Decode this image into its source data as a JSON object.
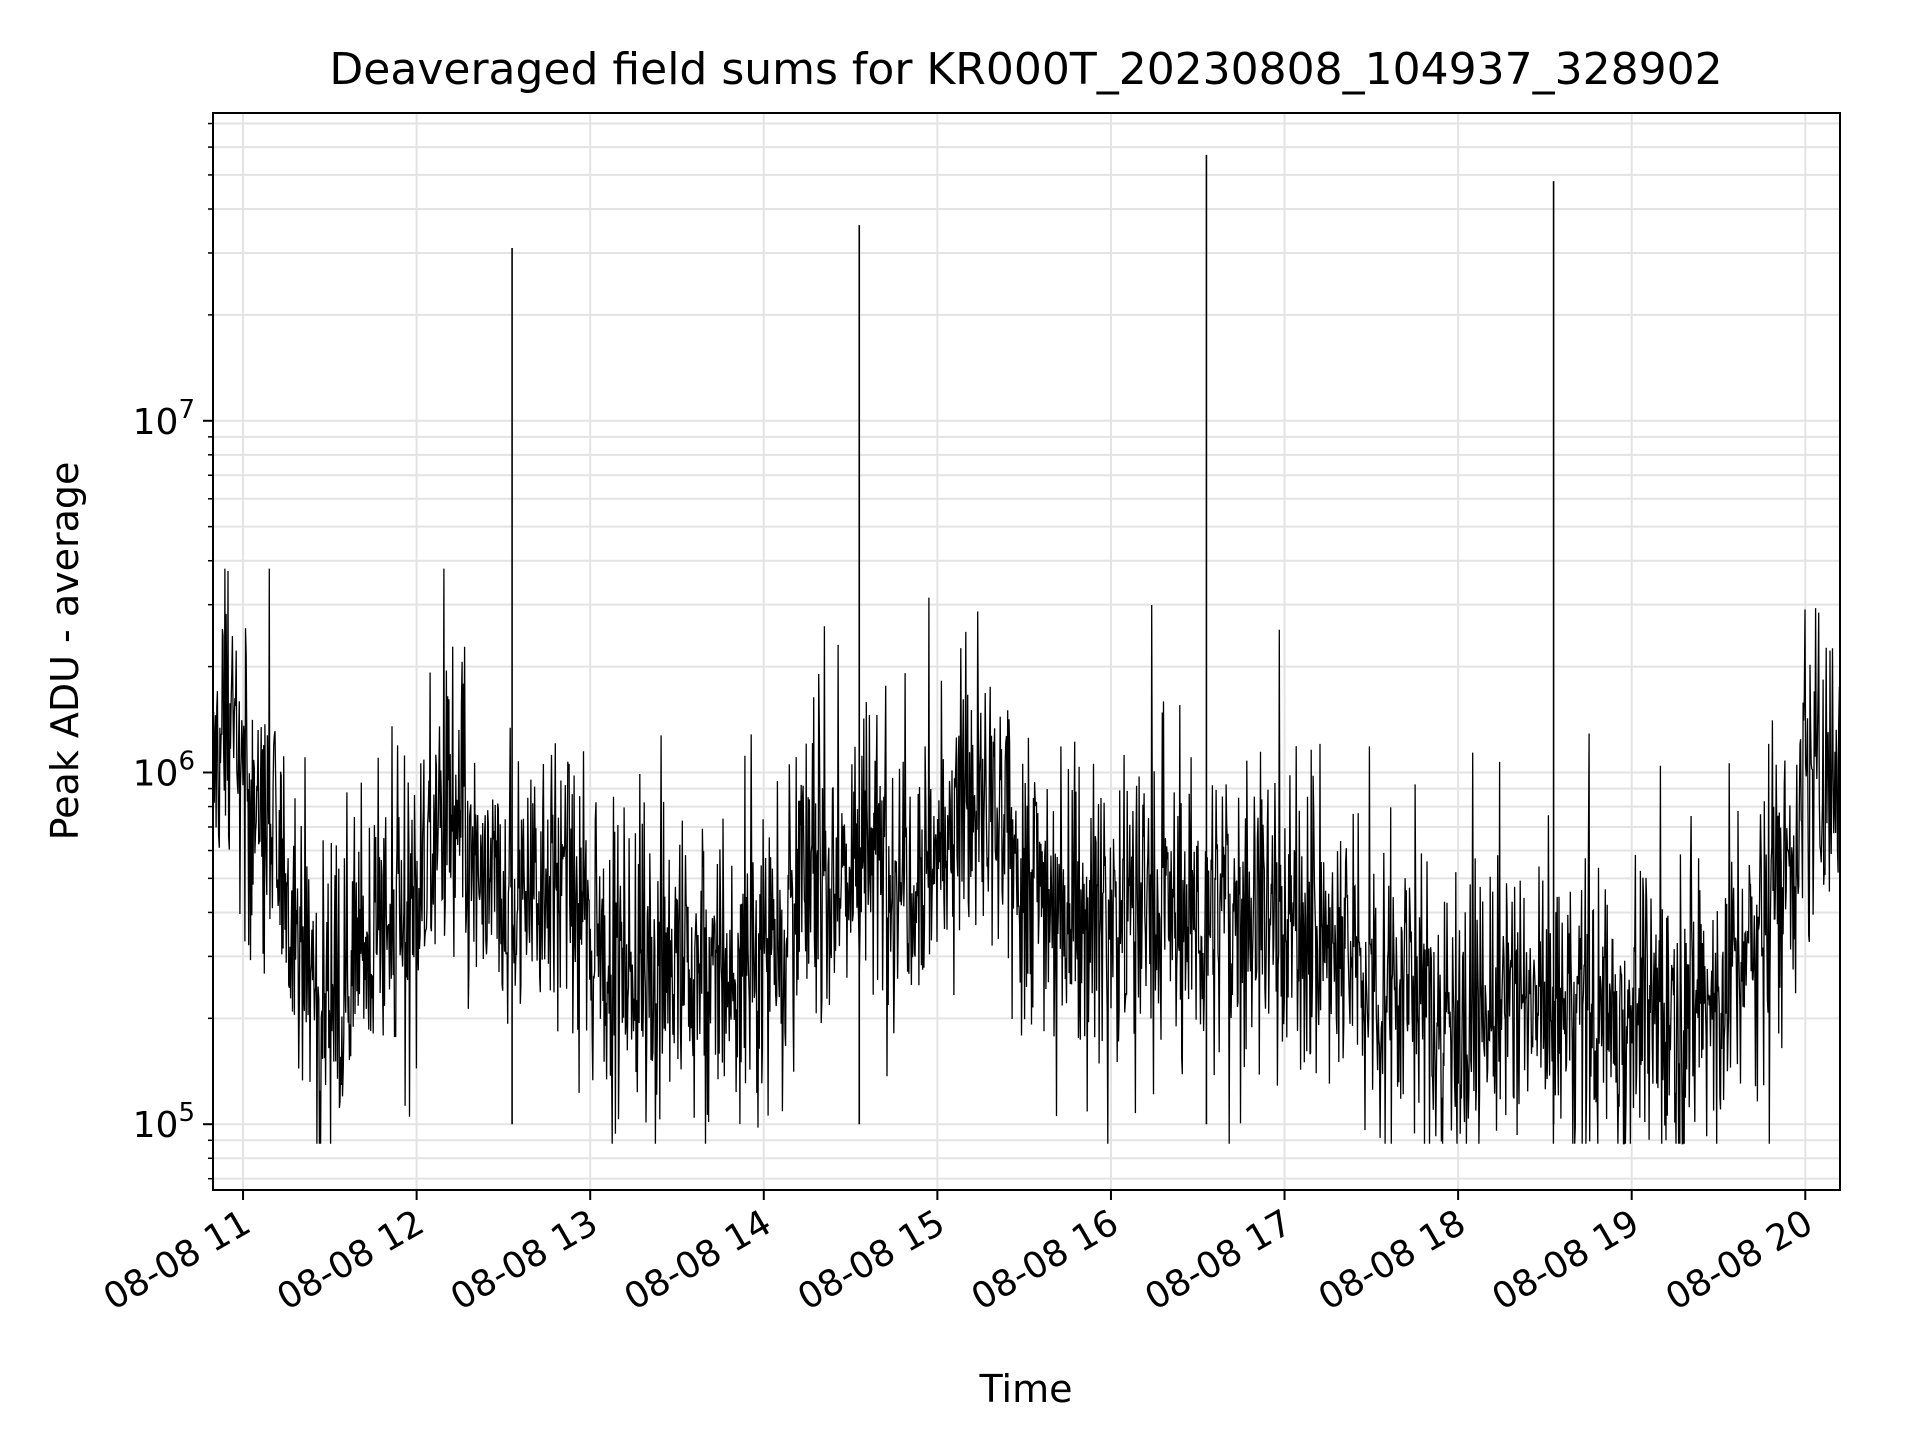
{
  "chart_data": {
    "type": "line",
    "title": "Deaveraged field sums for KR000T_20230808_104937_328902",
    "xlabel": "Time",
    "ylabel": "Peak ADU - average",
    "x_scale": "time",
    "y_scale": "log",
    "xlim": [
      "2023-08-08T10:49:37",
      "2023-08-08T20:12:00"
    ],
    "ylim": [
      65000,
      75000000
    ],
    "grid": true,
    "legend": "none",
    "line_color": "#000000",
    "grid_color": "#e3e3e3",
    "x_ticks": [
      {
        "value": "2023-08-08T11:00:00",
        "label": "08-08 11"
      },
      {
        "value": "2023-08-08T12:00:00",
        "label": "08-08 12"
      },
      {
        "value": "2023-08-08T13:00:00",
        "label": "08-08 13"
      },
      {
        "value": "2023-08-08T14:00:00",
        "label": "08-08 14"
      },
      {
        "value": "2023-08-08T15:00:00",
        "label": "08-08 15"
      },
      {
        "value": "2023-08-08T16:00:00",
        "label": "08-08 16"
      },
      {
        "value": "2023-08-08T17:00:00",
        "label": "08-08 17"
      },
      {
        "value": "2023-08-08T18:00:00",
        "label": "08-08 18"
      },
      {
        "value": "2023-08-08T19:00:00",
        "label": "08-08 19"
      },
      {
        "value": "2023-08-08T20:00:00",
        "label": "08-08 20"
      }
    ],
    "y_ticks": [
      {
        "value": 100000,
        "base": "10",
        "exp": "5"
      },
      {
        "value": 1000000,
        "base": "10",
        "exp": "6"
      },
      {
        "value": 10000000,
        "base": "10",
        "exp": "7"
      }
    ],
    "series": [
      {
        "x": [
          "2023-08-08T10:49:37",
          "2023-08-08T10:52:00",
          "2023-08-08T10:55:00",
          "2023-08-08T10:58:00",
          "2023-08-08T11:00:00",
          "2023-08-08T11:05:00",
          "2023-08-08T11:10:00",
          "2023-08-08T11:15:00",
          "2023-08-08T11:20:00",
          "2023-08-08T11:25:00",
          "2023-08-08T11:30:00",
          "2023-08-08T11:35:00",
          "2023-08-08T11:40:00",
          "2023-08-08T11:45:00",
          "2023-08-08T11:50:00",
          "2023-08-08T11:55:00",
          "2023-08-08T12:00:00",
          "2023-08-08T12:05:00",
          "2023-08-08T12:10:00",
          "2023-08-08T12:15:00",
          "2023-08-08T12:20:00",
          "2023-08-08T12:25:00",
          "2023-08-08T12:30:00",
          "2023-08-08T12:35:00",
          "2023-08-08T12:40:00",
          "2023-08-08T12:45:00",
          "2023-08-08T12:50:00",
          "2023-08-08T12:55:00",
          "2023-08-08T13:00:00",
          "2023-08-08T13:10:00",
          "2023-08-08T13:20:00",
          "2023-08-08T13:30:00",
          "2023-08-08T13:40:00",
          "2023-08-08T13:50:00",
          "2023-08-08T14:00:00",
          "2023-08-08T14:10:00",
          "2023-08-08T14:20:00",
          "2023-08-08T14:30:00",
          "2023-08-08T14:40:00",
          "2023-08-08T14:50:00",
          "2023-08-08T15:00:00",
          "2023-08-08T15:05:00",
          "2023-08-08T15:10:00",
          "2023-08-08T15:15:00",
          "2023-08-08T15:20:00",
          "2023-08-08T15:30:00",
          "2023-08-08T15:40:00",
          "2023-08-08T15:50:00",
          "2023-08-08T16:00:00",
          "2023-08-08T16:10:00",
          "2023-08-08T16:20:00",
          "2023-08-08T16:30:00",
          "2023-08-08T16:40:00",
          "2023-08-08T16:50:00",
          "2023-08-08T17:00:00",
          "2023-08-08T17:10:00",
          "2023-08-08T17:20:00",
          "2023-08-08T17:30:00",
          "2023-08-08T17:40:00",
          "2023-08-08T17:50:00",
          "2023-08-08T18:00:00",
          "2023-08-08T18:10:00",
          "2023-08-08T18:20:00",
          "2023-08-08T18:30:00",
          "2023-08-08T18:40:00",
          "2023-08-08T18:50:00",
          "2023-08-08T19:00:00",
          "2023-08-08T19:10:00",
          "2023-08-08T19:20:00",
          "2023-08-08T19:30:00",
          "2023-08-08T19:40:00",
          "2023-08-08T19:50:00",
          "2023-08-08T20:00:00",
          "2023-08-08T20:05:00",
          "2023-08-08T20:10:00"
        ],
        "y": [
          900000,
          1300000,
          1700000,
          1100000,
          900000,
          800000,
          600000,
          500000,
          300000,
          250000,
          230000,
          280000,
          300000,
          330000,
          350000,
          380000,
          450000,
          650000,
          750000,
          600000,
          500000,
          450000,
          400000,
          450000,
          500000,
          550000,
          500000,
          400000,
          340000,
          290000,
          290000,
          280000,
          260000,
          250000,
          330000,
          450000,
          500000,
          550000,
          550000,
          560000,
          580000,
          700000,
          900000,
          800000,
          650000,
          550000,
          450000,
          400000,
          400000,
          420000,
          400000,
          380000,
          400000,
          420000,
          400000,
          330000,
          300000,
          270000,
          250000,
          220000,
          210000,
          200000,
          220000,
          220000,
          210000,
          200000,
          210000,
          210000,
          220000,
          230000,
          300000,
          500000,
          800000,
          1000000,
          1100000
        ]
      }
    ],
    "spikes": [
      {
        "x": "2023-08-08T12:33:00",
        "y": 31000000
      },
      {
        "x": "2023-08-08T14:33:00",
        "y": 36000000
      },
      {
        "x": "2023-08-08T16:33:00",
        "y": 57000000
      },
      {
        "x": "2023-08-08T18:33:00",
        "y": 48000000
      }
    ]
  }
}
